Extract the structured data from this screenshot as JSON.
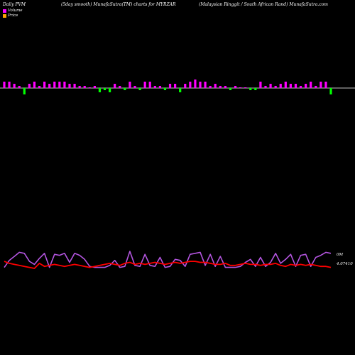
{
  "header": {
    "left": "Daily PVM",
    "middle": "(5day smooth) MunafaSutra(TM) charts for MYRZAR",
    "right": "(Malaysian Ringgit / South African Rand) MunafaSutra.com"
  },
  "legend": {
    "volume": "Volume",
    "price": "Price",
    "volume_color": "#ff00ff",
    "price_color": "#ffa500"
  },
  "labels": {
    "volume_axis": "0M",
    "price_axis": "4.07410"
  },
  "colors": {
    "background": "#000000",
    "up_bar": "#ff00ff",
    "down_bar": "#00ff00",
    "price_line": "#ff0000",
    "smooth_line": "#b455e0",
    "baseline": "#ffffff"
  },
  "chart_data": [
    {
      "type": "bar",
      "series": [
        {
          "name": "Volume",
          "values": [
            3,
            3,
            2,
            1,
            -3,
            2,
            3,
            1,
            3,
            2,
            3,
            3,
            3,
            2,
            2,
            1,
            1,
            0,
            1,
            -2,
            -1,
            -2,
            2,
            1,
            -1,
            3,
            1,
            -1,
            3,
            3,
            1,
            1,
            -1,
            2,
            2,
            -2,
            2,
            3,
            4,
            3,
            3,
            1,
            2,
            1,
            1,
            -1,
            1,
            0,
            0,
            -1,
            -1,
            3,
            1,
            2,
            1,
            2,
            3,
            2,
            2,
            1,
            2,
            3,
            1,
            3,
            3,
            -3
          ]
        }
      ]
    },
    {
      "type": "line",
      "series": [
        {
          "name": "Price",
          "values": [
            4.088,
            4.086,
            4.085,
            4.084,
            4.083,
            4.082,
            4.081,
            4.086,
            4.083,
            4.084,
            4.085,
            4.084,
            4.083,
            4.084,
            4.085,
            4.084,
            4.083,
            4.082,
            4.083,
            4.084,
            4.085,
            4.086,
            4.085,
            4.084,
            4.086,
            4.087,
            4.085,
            4.086,
            4.085,
            4.086,
            4.087,
            4.086,
            4.085,
            4.086,
            4.087,
            4.086,
            4.087,
            4.088,
            4.088,
            4.087,
            4.087,
            4.086,
            4.085,
            4.085,
            4.086,
            4.084,
            4.084,
            4.085,
            4.086,
            4.085,
            4.085,
            4.084,
            4.085,
            4.085,
            4.086,
            4.084,
            4.083,
            4.085,
            4.084,
            4.085,
            4.084,
            4.085,
            4.084,
            4.083,
            4.083,
            4.082
          ]
        },
        {
          "name": "Smooth",
          "values": [
            4.082,
            4.089,
            4.093,
            4.097,
            4.096,
            4.088,
            4.085,
            4.091,
            4.096,
            4.082,
            4.095,
            4.094,
            4.096,
            4.087,
            4.096,
            4.094,
            4.09,
            4.083,
            4.082,
            4.082,
            4.082,
            4.084,
            4.089,
            4.082,
            4.083,
            4.098,
            4.084,
            4.083,
            4.095,
            4.084,
            4.083,
            4.092,
            4.082,
            4.083,
            4.09,
            4.089,
            4.083,
            4.095,
            4.096,
            4.097,
            4.084,
            4.095,
            4.083,
            4.093,
            4.082,
            4.082,
            4.082,
            4.083,
            4.087,
            4.09,
            4.083,
            4.092,
            4.083,
            4.087,
            4.096,
            4.086,
            4.09,
            4.095,
            4.083,
            4.094,
            4.095,
            4.083,
            4.092,
            4.094,
            4.097,
            4.096
          ]
        }
      ]
    }
  ]
}
